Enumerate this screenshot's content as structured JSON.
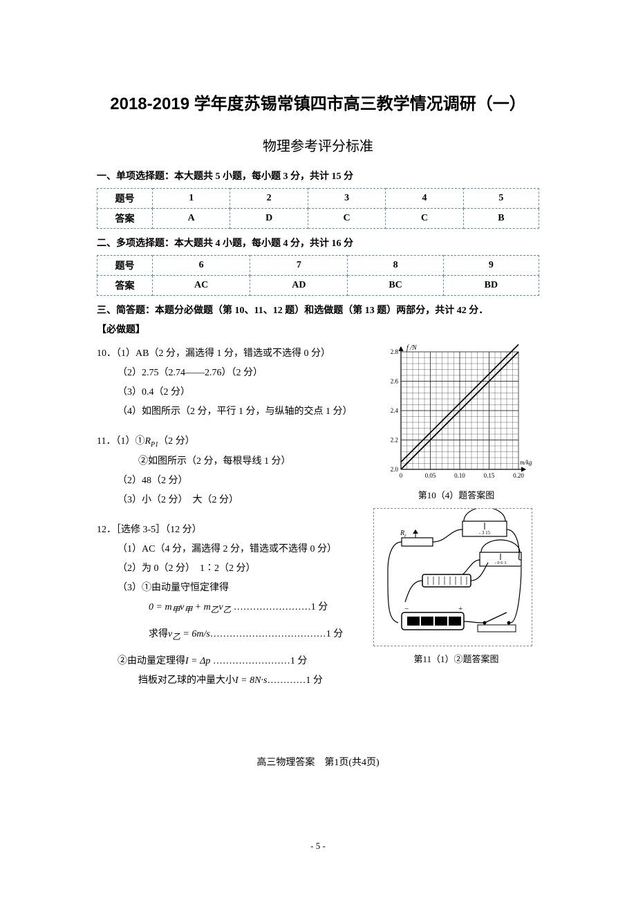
{
  "title": "2018-2019 学年度苏锡常镇四市高三教学情况调研（一）",
  "subtitle": "物理参考评分标准",
  "section1": {
    "header": "一、单项选择题：本大题共 5 小题，每小题 3 分，共计 15 分",
    "table": {
      "row_label_q": "题号",
      "row_label_a": "答案",
      "cols": [
        "1",
        "2",
        "3",
        "4",
        "5"
      ],
      "answers": [
        "A",
        "D",
        "C",
        "C",
        "B"
      ]
    }
  },
  "section2": {
    "header": "二、多项选择题：本大题共 4 小题，每小题 4 分，共计 16 分",
    "table": {
      "row_label_q": "题号",
      "row_label_a": "答案",
      "cols": [
        "6",
        "7",
        "8",
        "9"
      ],
      "answers": [
        "AC",
        "AD",
        "BC",
        "BD"
      ]
    }
  },
  "section3": {
    "header": "三、简答题：本题分必做题（第 10、11、12 题）和选做题（第 13 题）两部分，共计 42 分．",
    "mandatory": "【必做题】",
    "q10": {
      "line1": "10．（1）AB（2 分，漏选得 1 分，错选或不选得 0 分）",
      "line2": "（2）2.75（2.74——2.76）（2 分）",
      "line3": "（3）0.4（2 分）",
      "line4": "（4）如图所示（2 分，平行 1 分，与纵轴的交点 1 分）"
    },
    "q11": {
      "line1": "11．（1）①R_P1（2 分）",
      "line1_prefix": "11．（1）①",
      "line1_var": "R",
      "line1_sub": "P1",
      "line1_suffix": "（2 分）",
      "line2": "②如图所示（2 分，每根导线 1 分）",
      "line3": "（2）48（2 分）",
      "line4": "（3）小（2 分）　大（2 分）"
    },
    "q12": {
      "line1": "12．［选修 3-5］（12 分）",
      "line2": "（1）AC（4 分，漏选得 2 分，错选或不选得 0 分）",
      "line3": "（2）为 0（2 分）　1∶2（2 分）",
      "line4": "（3）①由动量守恒定律得",
      "eq1_prefix": "0 = ",
      "eq1": "m_甲 v_甲 + m_乙 v_乙",
      "eq1_score": "……………………1 分",
      "line5_prefix": "求得",
      "eq2": "v_乙 = 6m/s",
      "eq2_score": "………………………………1 分",
      "line6": "②由动量定理得",
      "eq3": "I = Δp",
      "eq3_score": "……………………1 分",
      "line7": "挡板对乙球的冲量大小",
      "eq4": "I = 8N·s",
      "eq4_score": "…………1 分"
    }
  },
  "chart": {
    "caption": "第10（4）题答案图",
    "ylabel": "f /N",
    "xlabel": "m/kg",
    "ylim": [
      2.0,
      2.8
    ],
    "ytick_step": 0.2,
    "yticks": [
      "2.0",
      "2.2",
      "2.4",
      "2.6",
      "2.8"
    ],
    "xlim": [
      0,
      0.2
    ],
    "xtick_step": 0.05,
    "xticks": [
      "0",
      "0.05",
      "0.10",
      "0.15",
      "0.20"
    ],
    "line_points": [
      [
        0,
        2.0
      ],
      [
        0.2,
        2.8
      ]
    ],
    "parallel_offset_y": 0.05,
    "grid_color": "#000000",
    "line_color": "#000000",
    "line_width": 1.8,
    "background_color": "#ffffff",
    "fontsize_label": 10,
    "fontsize_tick": 9,
    "minor_divisions": 5
  },
  "circuit": {
    "caption": "第11（1）②题答案图",
    "label_Rr": "R_r",
    "meter1": "- 3 15",
    "meter2": "- 0 6 3"
  },
  "footer": "高三物理答案　第1页(共4页)",
  "page_number": "- 5 -"
}
